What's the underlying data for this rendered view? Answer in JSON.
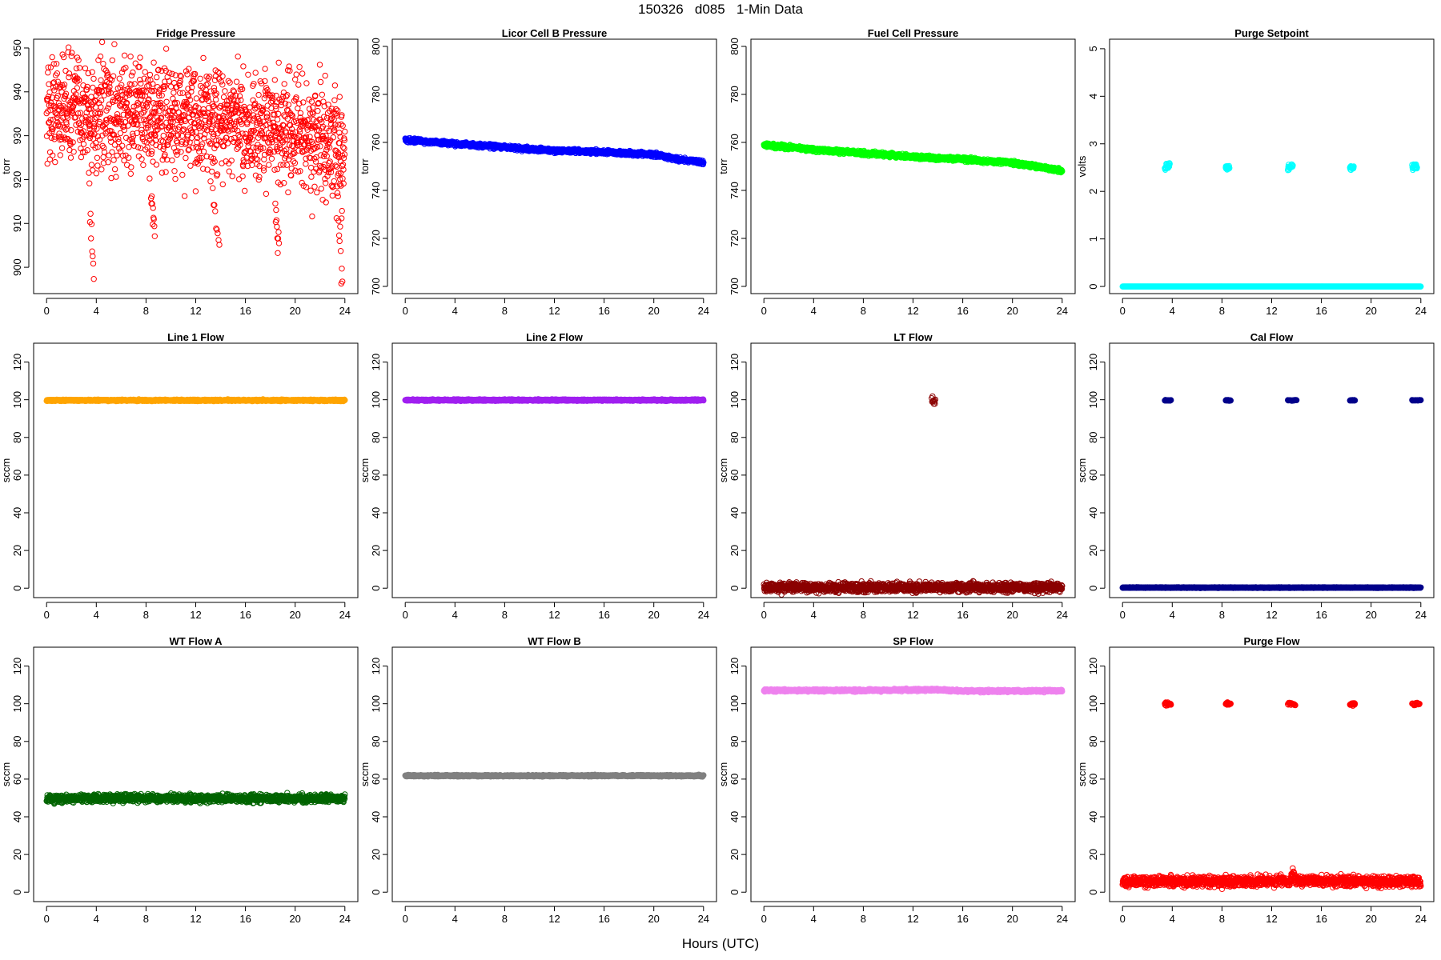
{
  "title": "150326   d085   1-Min Data",
  "x_title": "Hours (UTC)",
  "chart_data": [
    {
      "type": "scatter",
      "title": "Fridge Pressure",
      "ylabel": "torr",
      "color": "#ff0000",
      "xlim": [
        0,
        24
      ],
      "ylim": [
        894,
        952
      ],
      "xticks": [
        0,
        4,
        8,
        12,
        16,
        20,
        24
      ],
      "yticks": [
        900,
        910,
        920,
        930,
        940,
        950
      ],
      "noise": "band",
      "series": [
        {
          "name": "",
          "values": [
            [
              0,
              936
            ],
            [
              2,
              937
            ],
            [
              4,
              934
            ],
            [
              6,
              935
            ],
            [
              8,
              935
            ],
            [
              10,
              934
            ],
            [
              12,
              933
            ],
            [
              14,
              933
            ],
            [
              16,
              932
            ],
            [
              18,
              932
            ],
            [
              20,
              931
            ],
            [
              22,
              929
            ],
            [
              24,
              926
            ]
          ],
          "spread": 6
        },
        {
          "name": "",
          "values": [
            [
              3.4,
              920
            ],
            [
              3.5,
              912
            ],
            [
              3.6,
              909
            ],
            [
              3.7,
              905
            ],
            [
              3.8,
              901
            ]
          ],
          "spread": 2
        },
        {
          "name": "",
          "values": [
            [
              8.4,
              916
            ],
            [
              8.5,
              913
            ],
            [
              8.6,
              910
            ],
            [
              8.7,
              907
            ]
          ],
          "spread": 2
        },
        {
          "name": "",
          "values": [
            [
              13.3,
              921
            ],
            [
              13.5,
              914
            ],
            [
              13.7,
              909
            ],
            [
              13.9,
              905
            ]
          ],
          "spread": 2
        },
        {
          "name": "",
          "values": [
            [
              18.4,
              914
            ],
            [
              18.5,
              911
            ],
            [
              18.6,
              908
            ],
            [
              18.7,
              905
            ]
          ],
          "spread": 2
        },
        {
          "name": "",
          "values": [
            [
              23.4,
              917
            ],
            [
              23.5,
              911
            ],
            [
              23.6,
              906
            ],
            [
              23.7,
              901
            ],
            [
              23.8,
              896
            ]
          ],
          "spread": 2
        }
      ]
    },
    {
      "type": "scatter",
      "title": "Licor Cell B Pressure",
      "ylabel": "torr",
      "color": "#0000ff",
      "xlim": [
        0,
        24
      ],
      "ylim": [
        697,
        803
      ],
      "xticks": [
        0,
        4,
        8,
        12,
        16,
        20,
        24
      ],
      "yticks": [
        700,
        720,
        740,
        760,
        780,
        800
      ],
      "noise": "thick",
      "series": [
        {
          "name": "",
          "values": [
            [
              0,
              761
            ],
            [
              4,
              759.5
            ],
            [
              8,
              758
            ],
            [
              12,
              756.5
            ],
            [
              16,
              756
            ],
            [
              20,
              755
            ],
            [
              22,
              753
            ],
            [
              24,
              751.5
            ]
          ],
          "spread": 0.4
        }
      ]
    },
    {
      "type": "scatter",
      "title": "Fuel Cell Pressure",
      "ylabel": "torr",
      "color": "#00ff00",
      "xlim": [
        0,
        24
      ],
      "ylim": [
        697,
        803
      ],
      "xticks": [
        0,
        4,
        8,
        12,
        16,
        20,
        24
      ],
      "yticks": [
        700,
        720,
        740,
        760,
        780,
        800
      ],
      "noise": "thick",
      "series": [
        {
          "name": "",
          "values": [
            [
              0,
              759
            ],
            [
              4,
              757
            ],
            [
              8,
              755.5
            ],
            [
              12,
              754
            ],
            [
              16,
              753
            ],
            [
              20,
              751.5
            ],
            [
              22,
              750
            ],
            [
              24,
              748
            ]
          ],
          "spread": 0.4
        }
      ]
    },
    {
      "type": "scatter",
      "title": "Purge Setpoint",
      "ylabel": "volts",
      "color": "#00ffff",
      "xlim": [
        0,
        24
      ],
      "ylim": [
        -0.15,
        5.2
      ],
      "xticks": [
        0,
        4,
        8,
        12,
        16,
        20,
        24
      ],
      "yticks": [
        0,
        1,
        2,
        3,
        4,
        5
      ],
      "noise": "thick",
      "series": [
        {
          "name": "",
          "values": [
            [
              0,
              0
            ],
            [
              24,
              0
            ]
          ],
          "spread": 0
        },
        {
          "name": "",
          "values": [
            [
              3.4,
              2.5
            ],
            [
              3.8,
              2.55
            ]
          ],
          "spread": 0.03,
          "segment": true
        },
        {
          "name": "",
          "values": [
            [
              8.3,
              2.5
            ],
            [
              8.6,
              2.5
            ]
          ],
          "spread": 0.02,
          "segment": true
        },
        {
          "name": "",
          "values": [
            [
              13.3,
              2.5
            ],
            [
              13.7,
              2.55
            ]
          ],
          "spread": 0.03,
          "segment": true
        },
        {
          "name": "",
          "values": [
            [
              18.3,
              2.5
            ],
            [
              18.6,
              2.5
            ]
          ],
          "spread": 0.02,
          "segment": true
        },
        {
          "name": "",
          "values": [
            [
              23.3,
              2.5
            ],
            [
              23.7,
              2.55
            ]
          ],
          "spread": 0.03,
          "segment": true
        }
      ]
    },
    {
      "type": "scatter",
      "title": "Line 1 Flow",
      "ylabel": "sccm",
      "color": "#ffa500",
      "xlim": [
        0,
        24
      ],
      "ylim": [
        -5,
        130
      ],
      "xticks": [
        0,
        4,
        8,
        12,
        16,
        20,
        24
      ],
      "yticks": [
        0,
        20,
        40,
        60,
        80,
        100,
        120
      ],
      "noise": "thick",
      "series": [
        {
          "name": "",
          "values": [
            [
              0,
              99.7
            ],
            [
              24,
              99.7
            ]
          ],
          "spread": 0.2
        }
      ]
    },
    {
      "type": "scatter",
      "title": "Line 2 Flow",
      "ylabel": "sccm",
      "color": "#a020f0",
      "xlim": [
        0,
        24
      ],
      "ylim": [
        -5,
        130
      ],
      "xticks": [
        0,
        4,
        8,
        12,
        16,
        20,
        24
      ],
      "yticks": [
        0,
        20,
        40,
        60,
        80,
        100,
        120
      ],
      "noise": "thick",
      "series": [
        {
          "name": "",
          "values": [
            [
              0,
              99.8
            ],
            [
              24,
              99.8
            ]
          ],
          "spread": 0.2
        }
      ]
    },
    {
      "type": "scatter",
      "title": "LT Flow",
      "ylabel": "sccm",
      "color": "#8b0000",
      "xlim": [
        0,
        24
      ],
      "ylim": [
        -5,
        130
      ],
      "xticks": [
        0,
        4,
        8,
        12,
        16,
        20,
        24
      ],
      "yticks": [
        0,
        20,
        40,
        60,
        80,
        100,
        120
      ],
      "noise": "band",
      "series": [
        {
          "name": "",
          "values": [
            [
              0,
              0.4
            ],
            [
              24,
              0.4
            ]
          ],
          "spread": 1.2
        },
        {
          "name": "",
          "values": [
            [
              13.5,
              100.5
            ],
            [
              13.6,
              99
            ],
            [
              13.7,
              98.5
            ],
            [
              13.8,
              100
            ]
          ],
          "spread": 1
        }
      ]
    },
    {
      "type": "scatter",
      "title": "Cal Flow",
      "ylabel": "sccm",
      "color": "#00008b",
      "xlim": [
        0,
        24
      ],
      "ylim": [
        -5,
        130
      ],
      "xticks": [
        0,
        4,
        8,
        12,
        16,
        20,
        24
      ],
      "yticks": [
        0,
        20,
        40,
        60,
        80,
        100,
        120
      ],
      "noise": "thick",
      "series": [
        {
          "name": "",
          "values": [
            [
              0,
              0.3
            ],
            [
              24,
              0.3
            ]
          ],
          "spread": 0.1
        },
        {
          "name": "",
          "values": [
            [
              3.4,
              99.7
            ],
            [
              3.9,
              99.7
            ]
          ],
          "spread": 0.1,
          "segment": true
        },
        {
          "name": "",
          "values": [
            [
              8.3,
              99.7
            ],
            [
              8.7,
              99.7
            ]
          ],
          "spread": 0.1,
          "segment": true
        },
        {
          "name": "",
          "values": [
            [
              13.3,
              99.7
            ],
            [
              14.0,
              99.7
            ]
          ],
          "spread": 0.1,
          "segment": true
        },
        {
          "name": "",
          "values": [
            [
              18.3,
              99.7
            ],
            [
              18.7,
              99.7
            ]
          ],
          "spread": 0.1,
          "segment": true
        },
        {
          "name": "",
          "values": [
            [
              23.3,
              99.7
            ],
            [
              24.0,
              99.7
            ]
          ],
          "spread": 0.1,
          "segment": true
        }
      ]
    },
    {
      "type": "scatter",
      "title": "WT Flow A",
      "ylabel": "sccm",
      "color": "#006400",
      "xlim": [
        0,
        24
      ],
      "ylim": [
        -5,
        130
      ],
      "xticks": [
        0,
        4,
        8,
        12,
        16,
        20,
        24
      ],
      "yticks": [
        0,
        20,
        40,
        60,
        80,
        100,
        120
      ],
      "noise": "band",
      "series": [
        {
          "name": "",
          "values": [
            [
              0,
              49.8
            ],
            [
              24,
              49.8
            ]
          ],
          "spread": 1.0
        }
      ]
    },
    {
      "type": "scatter",
      "title": "WT Flow B",
      "ylabel": "sccm",
      "color": "#808080",
      "xlim": [
        0,
        24
      ],
      "ylim": [
        -5,
        130
      ],
      "xticks": [
        0,
        4,
        8,
        12,
        16,
        20,
        24
      ],
      "yticks": [
        0,
        20,
        40,
        60,
        80,
        100,
        120
      ],
      "noise": "thick",
      "series": [
        {
          "name": "",
          "values": [
            [
              0,
              61.8
            ],
            [
              24,
              61.8
            ]
          ],
          "spread": 0.2
        }
      ]
    },
    {
      "type": "scatter",
      "title": "SP Flow",
      "ylabel": "sccm",
      "color": "#ee82ee",
      "xlim": [
        0,
        24
      ],
      "ylim": [
        -5,
        130
      ],
      "xticks": [
        0,
        4,
        8,
        12,
        16,
        20,
        24
      ],
      "yticks": [
        0,
        20,
        40,
        60,
        80,
        100,
        120
      ],
      "noise": "thick",
      "series": [
        {
          "name": "",
          "values": [
            [
              0,
              107
            ],
            [
              8,
              107.1
            ],
            [
              13.8,
              107.5
            ],
            [
              16,
              106.8
            ],
            [
              20,
              106.8
            ],
            [
              24,
              106.8
            ]
          ],
          "spread": 0.3
        }
      ]
    },
    {
      "type": "scatter",
      "title": "Purge Flow",
      "ylabel": "sccm",
      "color": "#ff0000",
      "xlim": [
        0,
        24
      ],
      "ylim": [
        -5,
        130
      ],
      "xticks": [
        0,
        4,
        8,
        12,
        16,
        20,
        24
      ],
      "yticks": [
        0,
        20,
        40,
        60,
        80,
        100,
        120
      ],
      "noise": "band",
      "series": [
        {
          "name": "",
          "values": [
            [
              0,
              5.6
            ],
            [
              13.5,
              5.8
            ],
            [
              13.7,
              10
            ],
            [
              13.9,
              6
            ],
            [
              24,
              5.5
            ]
          ],
          "spread": 1.4
        },
        {
          "name": "",
          "values": [
            [
              3.4,
              100
            ],
            [
              3.9,
              100
            ]
          ],
          "spread": 0.4,
          "segment": true
        },
        {
          "name": "",
          "values": [
            [
              8.3,
              100
            ],
            [
              8.7,
              100
            ]
          ],
          "spread": 0.4,
          "segment": true
        },
        {
          "name": "",
          "values": [
            [
              13.3,
              100
            ],
            [
              13.9,
              100
            ]
          ],
          "spread": 0.4,
          "segment": true
        },
        {
          "name": "",
          "values": [
            [
              18.3,
              100
            ],
            [
              18.7,
              100
            ]
          ],
          "spread": 0.4,
          "segment": true
        },
        {
          "name": "",
          "values": [
            [
              23.3,
              100
            ],
            [
              23.9,
              100
            ]
          ],
          "spread": 0.4,
          "segment": true
        }
      ]
    }
  ]
}
